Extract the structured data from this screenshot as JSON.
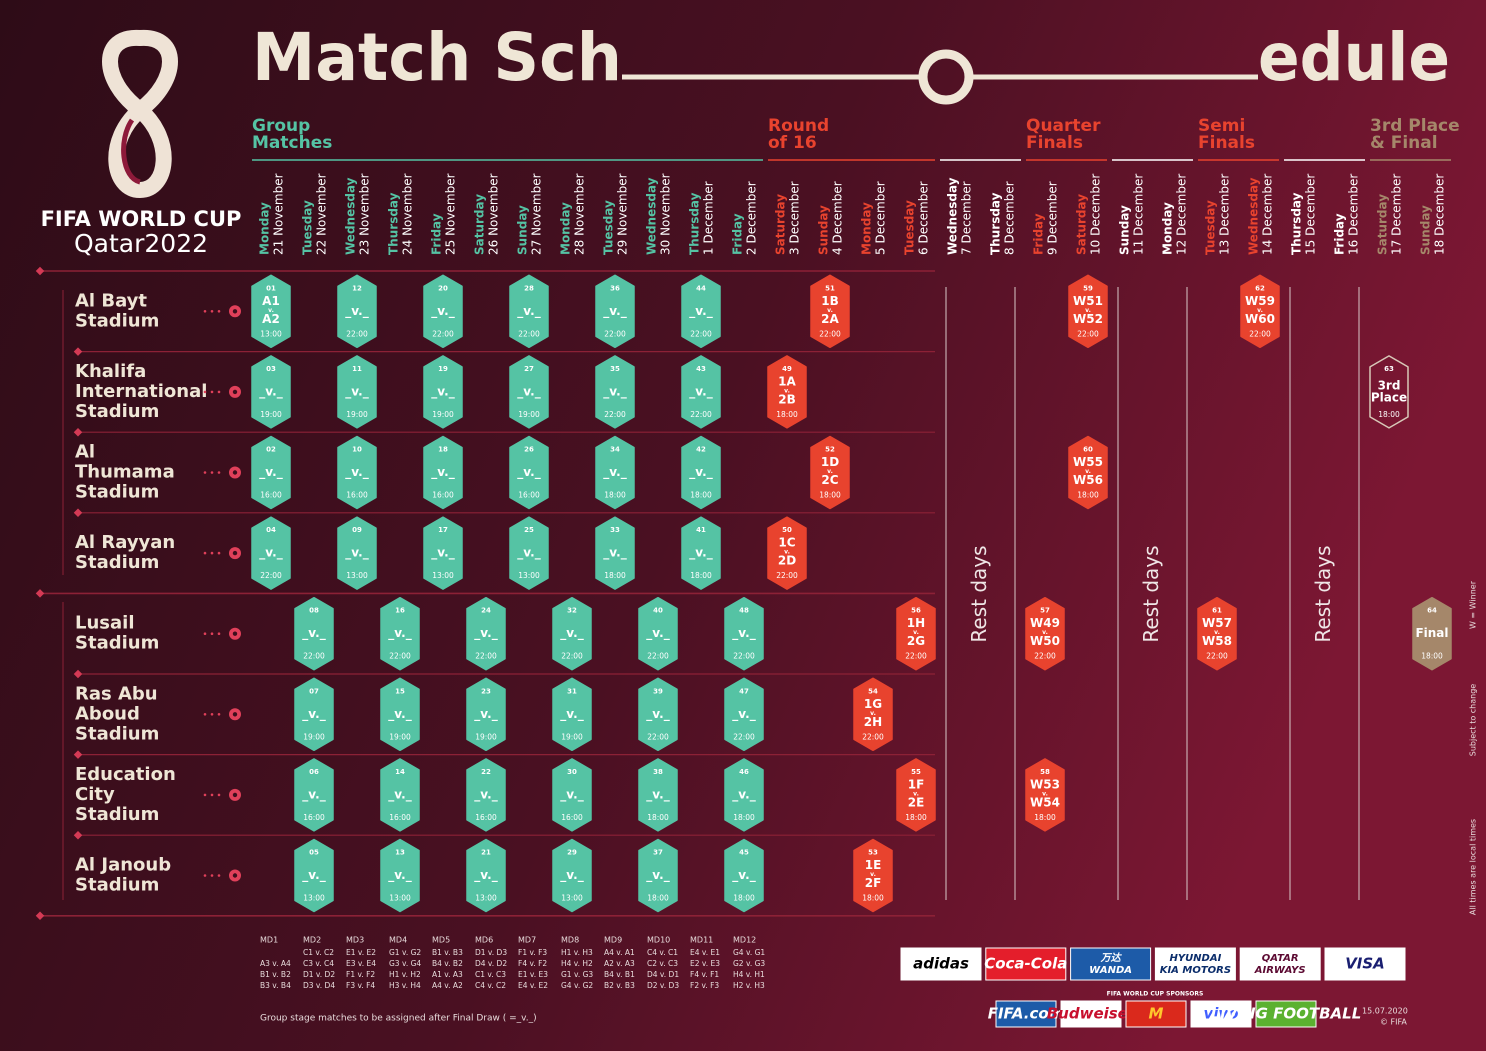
{
  "header": {
    "title_left": "Match Sch",
    "title_right": "edule",
    "logo_line1": "FIFA WORLD CUP",
    "logo_line2": "Qatar2022"
  },
  "columns": [
    {
      "label": [
        "Group",
        "Matches"
      ],
      "color": "#55c3a4",
      "days": [
        {
          "weekday": "Monday",
          "date": "21 November"
        },
        {
          "weekday": "Tuesday",
          "date": "22 November"
        },
        {
          "weekday": "Wednesday",
          "date": "23 November"
        },
        {
          "weekday": "Thursday",
          "date": "24 November"
        },
        {
          "weekday": "Friday",
          "date": "25 November"
        },
        {
          "weekday": "Saturday",
          "date": "26 November"
        },
        {
          "weekday": "Sunday",
          "date": "27 November"
        },
        {
          "weekday": "Monday",
          "date": "28 November"
        },
        {
          "weekday": "Tuesday",
          "date": "29 November"
        },
        {
          "weekday": "Wednesday",
          "date": "30 November"
        },
        {
          "weekday": "Thursday",
          "date": "1 December"
        },
        {
          "weekday": "Friday",
          "date": "2 December"
        }
      ]
    },
    {
      "label": [
        "Round",
        "of 16"
      ],
      "color": "#e8432e",
      "days": [
        {
          "weekday": "Saturday",
          "date": "3 December"
        },
        {
          "weekday": "Sunday",
          "date": "4 December"
        },
        {
          "weekday": "Monday",
          "date": "5 December"
        },
        {
          "weekday": "Tuesday",
          "date": "6 December"
        }
      ]
    },
    {
      "rest": "Rest days",
      "color": "#ffffff",
      "days": [
        {
          "weekday": "Wednesday",
          "date": "7 December"
        },
        {
          "weekday": "Thursday",
          "date": "8 December"
        }
      ]
    },
    {
      "label": [
        "Quarter",
        "Finals"
      ],
      "color": "#e8432e",
      "days": [
        {
          "weekday": "Friday",
          "date": "9 December"
        },
        {
          "weekday": "Saturday",
          "date": "10 December"
        }
      ]
    },
    {
      "rest": "Rest days",
      "color": "#ffffff",
      "days": [
        {
          "weekday": "Sunday",
          "date": "11 December"
        },
        {
          "weekday": "Monday",
          "date": "12 December"
        }
      ]
    },
    {
      "label": [
        "Semi",
        "Finals"
      ],
      "color": "#e8432e",
      "days": [
        {
          "weekday": "Tuesday",
          "date": "13 December"
        },
        {
          "weekday": "Wednesday",
          "date": "14 December"
        }
      ]
    },
    {
      "rest": "Rest days",
      "color": "#ffffff",
      "days": [
        {
          "weekday": "Thursday",
          "date": "15 December"
        },
        {
          "weekday": "Friday",
          "date": "16 December"
        }
      ]
    },
    {
      "label": [
        "3rd Place",
        "& Final"
      ],
      "color": "#a5876a",
      "days": [
        {
          "weekday": "Saturday",
          "date": "17 December"
        },
        {
          "weekday": "Sunday",
          "date": "18 December"
        }
      ]
    }
  ],
  "stadiums": [
    {
      "name": [
        "Al Bayt",
        "Stadium"
      ],
      "matches": [
        {
          "no": "01",
          "date": "21 November",
          "teams": [
            "A1",
            "v.",
            "A2"
          ],
          "time": "13:00"
        },
        {
          "no": "12",
          "date": "23 November",
          "teams": [
            "_v._"
          ],
          "time": "22:00"
        },
        {
          "no": "20",
          "date": "25 November",
          "teams": [
            "_v._"
          ],
          "time": "22:00"
        },
        {
          "no": "28",
          "date": "27 November",
          "teams": [
            "_v._"
          ],
          "time": "22:00"
        },
        {
          "no": "36",
          "date": "29 November",
          "teams": [
            "_v._"
          ],
          "time": "22:00"
        },
        {
          "no": "44",
          "date": "1 December",
          "teams": [
            "_v._"
          ],
          "time": "22:00"
        },
        {
          "no": "51",
          "date": "4 December",
          "teams": [
            "1B",
            "v.",
            "2A"
          ],
          "time": "22:00"
        },
        {
          "no": "59",
          "date": "10 December",
          "teams": [
            "W51",
            "v.",
            "W52"
          ],
          "time": "22:00"
        },
        {
          "no": "62",
          "date": "14 December",
          "teams": [
            "W59",
            "v.",
            "W60"
          ],
          "time": "22:00"
        }
      ]
    },
    {
      "name": [
        "Khalifa",
        "International",
        "Stadium"
      ],
      "matches": [
        {
          "no": "03",
          "date": "21 November",
          "teams": [
            "_v._"
          ],
          "time": "19:00"
        },
        {
          "no": "11",
          "date": "23 November",
          "teams": [
            "_v._"
          ],
          "time": "19:00"
        },
        {
          "no": "19",
          "date": "25 November",
          "teams": [
            "_v._"
          ],
          "time": "19:00"
        },
        {
          "no": "27",
          "date": "27 November",
          "teams": [
            "_v._"
          ],
          "time": "19:00"
        },
        {
          "no": "35",
          "date": "29 November",
          "teams": [
            "_v._"
          ],
          "time": "22:00"
        },
        {
          "no": "43",
          "date": "1 December",
          "teams": [
            "_v._"
          ],
          "time": "22:00"
        },
        {
          "no": "49",
          "date": "3 December",
          "teams": [
            "1A",
            "v.",
            "2B"
          ],
          "time": "18:00"
        },
        {
          "no": "63",
          "date": "17 December",
          "teams": [
            "3rd",
            "Place"
          ],
          "time": "18:00",
          "outline": true
        }
      ]
    },
    {
      "name": [
        "Al",
        "Thumama",
        "Stadium"
      ],
      "matches": [
        {
          "no": "02",
          "date": "21 November",
          "teams": [
            "_v._"
          ],
          "time": "16:00"
        },
        {
          "no": "10",
          "date": "23 November",
          "teams": [
            "_v._"
          ],
          "time": "16:00"
        },
        {
          "no": "18",
          "date": "25 November",
          "teams": [
            "_v._"
          ],
          "time": "16:00"
        },
        {
          "no": "26",
          "date": "27 November",
          "teams": [
            "_v._"
          ],
          "time": "16:00"
        },
        {
          "no": "34",
          "date": "29 November",
          "teams": [
            "_v._"
          ],
          "time": "18:00"
        },
        {
          "no": "42",
          "date": "1 December",
          "teams": [
            "_v._"
          ],
          "time": "18:00"
        },
        {
          "no": "52",
          "date": "4 December",
          "teams": [
            "1D",
            "v.",
            "2C"
          ],
          "time": "18:00"
        },
        {
          "no": "60",
          "date": "10 December",
          "teams": [
            "W55",
            "v.",
            "W56"
          ],
          "time": "18:00"
        }
      ]
    },
    {
      "name": [
        "Al Rayyan",
        "Stadium"
      ],
      "matches": [
        {
          "no": "04",
          "date": "21 November",
          "teams": [
            "_v._"
          ],
          "time": "22:00"
        },
        {
          "no": "09",
          "date": "23 November",
          "teams": [
            "_v._"
          ],
          "time": "13:00"
        },
        {
          "no": "17",
          "date": "25 November",
          "teams": [
            "_v._"
          ],
          "time": "13:00"
        },
        {
          "no": "25",
          "date": "27 November",
          "teams": [
            "_v._"
          ],
          "time": "13:00"
        },
        {
          "no": "33",
          "date": "29 November",
          "teams": [
            "_v._"
          ],
          "time": "18:00"
        },
        {
          "no": "41",
          "date": "1 December",
          "teams": [
            "_v._"
          ],
          "time": "18:00"
        },
        {
          "no": "50",
          "date": "3 December",
          "teams": [
            "1C",
            "v.",
            "2D"
          ],
          "time": "22:00"
        }
      ]
    },
    {
      "name": [
        "Lusail",
        "Stadium"
      ],
      "matches": [
        {
          "no": "08",
          "date": "22 November",
          "teams": [
            "_v._"
          ],
          "time": "22:00"
        },
        {
          "no": "16",
          "date": "24 November",
          "teams": [
            "_v._"
          ],
          "time": "22:00"
        },
        {
          "no": "24",
          "date": "26 November",
          "teams": [
            "_v._"
          ],
          "time": "22:00"
        },
        {
          "no": "32",
          "date": "28 November",
          "teams": [
            "_v._"
          ],
          "time": "22:00"
        },
        {
          "no": "40",
          "date": "30 November",
          "teams": [
            "_v._"
          ],
          "time": "22:00"
        },
        {
          "no": "48",
          "date": "2 December",
          "teams": [
            "_v._"
          ],
          "time": "22:00"
        },
        {
          "no": "56",
          "date": "6 December",
          "teams": [
            "1H",
            "v.",
            "2G"
          ],
          "time": "22:00"
        },
        {
          "no": "57",
          "date": "9 December",
          "teams": [
            "W49",
            "v.",
            "W50"
          ],
          "time": "22:00"
        },
        {
          "no": "61",
          "date": "13 December",
          "teams": [
            "W57",
            "v.",
            "W58"
          ],
          "time": "22:00"
        },
        {
          "no": "64",
          "date": "18 December",
          "teams": [
            "Final"
          ],
          "time": "18:00"
        }
      ]
    },
    {
      "name": [
        "Ras Abu",
        "Aboud",
        "Stadium"
      ],
      "matches": [
        {
          "no": "07",
          "date": "22 November",
          "teams": [
            "_v._"
          ],
          "time": "19:00"
        },
        {
          "no": "15",
          "date": "24 November",
          "teams": [
            "_v._"
          ],
          "time": "19:00"
        },
        {
          "no": "23",
          "date": "26 November",
          "teams": [
            "_v._"
          ],
          "time": "19:00"
        },
        {
          "no": "31",
          "date": "28 November",
          "teams": [
            "_v._"
          ],
          "time": "19:00"
        },
        {
          "no": "39",
          "date": "30 November",
          "teams": [
            "_v._"
          ],
          "time": "22:00"
        },
        {
          "no": "47",
          "date": "2 December",
          "teams": [
            "_v._"
          ],
          "time": "22:00"
        },
        {
          "no": "54",
          "date": "5 December",
          "teams": [
            "1G",
            "v.",
            "2H"
          ],
          "time": "22:00"
        }
      ]
    },
    {
      "name": [
        "Education",
        "City",
        "Stadium"
      ],
      "matches": [
        {
          "no": "06",
          "date": "22 November",
          "teams": [
            "_v._"
          ],
          "time": "16:00"
        },
        {
          "no": "14",
          "date": "24 November",
          "teams": [
            "_v._"
          ],
          "time": "16:00"
        },
        {
          "no": "22",
          "date": "26 November",
          "teams": [
            "_v._"
          ],
          "time": "16:00"
        },
        {
          "no": "30",
          "date": "28 November",
          "teams": [
            "_v._"
          ],
          "time": "16:00"
        },
        {
          "no": "38",
          "date": "30 November",
          "teams": [
            "_v._"
          ],
          "time": "18:00"
        },
        {
          "no": "46",
          "date": "2 December",
          "teams": [
            "_v._"
          ],
          "time": "18:00"
        },
        {
          "no": "55",
          "date": "6 December",
          "teams": [
            "1F",
            "v.",
            "2E"
          ],
          "time": "18:00"
        },
        {
          "no": "58",
          "date": "9 December",
          "teams": [
            "W53",
            "v.",
            "W54"
          ],
          "time": "18:00"
        }
      ]
    },
    {
      "name": [
        "Al Janoub",
        "Stadium"
      ],
      "matches": [
        {
          "no": "05",
          "date": "22 November",
          "teams": [
            "_v._"
          ],
          "time": "13:00"
        },
        {
          "no": "13",
          "date": "24 November",
          "teams": [
            "_v._"
          ],
          "time": "13:00"
        },
        {
          "no": "21",
          "date": "26 November",
          "teams": [
            "_v._"
          ],
          "time": "13:00"
        },
        {
          "no": "29",
          "date": "28 November",
          "teams": [
            "_v._"
          ],
          "time": "13:00"
        },
        {
          "no": "37",
          "date": "30 November",
          "teams": [
            "_v._"
          ],
          "time": "18:00"
        },
        {
          "no": "45",
          "date": "2 December",
          "teams": [
            "_v._"
          ],
          "time": "18:00"
        },
        {
          "no": "53",
          "date": "5 December",
          "teams": [
            "1E",
            "v.",
            "2F"
          ],
          "time": "18:00"
        }
      ]
    }
  ],
  "matchdays": [
    {
      "label": "MD1",
      "fixtures": [
        "A3 v. A4",
        "B1 v. B2",
        "B3 v. B4"
      ]
    },
    {
      "label": "MD2",
      "fixtures": [
        "C1 v. C2",
        "C3 v. C4",
        "D1 v. D2",
        "D3 v. D4"
      ]
    },
    {
      "label": "MD3",
      "fixtures": [
        "E1 v. E2",
        "E3 v. E4",
        "F1 v. F2",
        "F3 v. F4"
      ]
    },
    {
      "label": "MD4",
      "fixtures": [
        "G1 v. G2",
        "G3 v. G4",
        "H1 v. H2",
        "H3 v. H4"
      ]
    },
    {
      "label": "MD5",
      "fixtures": [
        "B1 v. B3",
        "B4 v. B2",
        "A1 v. A3",
        "A4 v. A2"
      ]
    },
    {
      "label": "MD6",
      "fixtures": [
        "D1 v. D3",
        "D4 v. D2",
        "C1 v. C3",
        "C4 v. C2"
      ]
    },
    {
      "label": "MD7",
      "fixtures": [
        "F1 v. F3",
        "F4 v. F2",
        "E1 v. E3",
        "E4 v. E2"
      ]
    },
    {
      "label": "MD8",
      "fixtures": [
        "H1 v. H3",
        "H4 v. H2",
        "G1 v. G3",
        "G4 v. G2"
      ]
    },
    {
      "label": "MD9",
      "fixtures": [
        "A4 v. A1",
        "A2 v. A3",
        "B4 v. B1",
        "B2 v. B3"
      ]
    },
    {
      "label": "MD10",
      "fixtures": [
        "C4 v. C1",
        "C2 v. C3",
        "D4 v. D1",
        "D2 v. D3"
      ]
    },
    {
      "label": "MD11",
      "fixtures": [
        "E4 v. E1",
        "E2 v. E3",
        "F4 v. F1",
        "F2 v. F3"
      ]
    },
    {
      "label": "MD12",
      "fixtures": [
        "G4 v. G1",
        "G2 v. G3",
        "H4 v. H1",
        "H2 v. H3"
      ]
    }
  ],
  "footer_note": "Group stage matches to be assigned after Final Draw ( =_v._)",
  "side_notes": [
    "W = Winner",
    "Subject to change",
    "All times are local times"
  ],
  "sponsors_title": "FIFA WORLD CUP SPONSORS",
  "partners": [
    {
      "lines": [
        "adidas"
      ],
      "bg": "#ffffff",
      "color": "#000000"
    },
    {
      "lines": [
        "Coca-Cola"
      ],
      "bg": "#e41e2b",
      "color": "#ffffff"
    },
    {
      "lines": [
        "万达",
        "WANDA"
      ],
      "bg": "#1d5ba8",
      "color": "#ffffff"
    },
    {
      "lines": [
        "HYUNDAI",
        "KIA MOTORS"
      ],
      "bg": "#ffffff",
      "color": "#0b2d6b"
    },
    {
      "lines": [
        "QATAR",
        "AIRWAYS"
      ],
      "bg": "#ffffff",
      "color": "#5c0a32"
    },
    {
      "lines": [
        "VISA"
      ],
      "bg": "#ffffff",
      "color": "#1a1f71"
    }
  ],
  "sponsors": [
    {
      "lines": [
        "FIFA.com"
      ],
      "bg": "#1d5ba8",
      "color": "#ffffff"
    },
    {
      "lines": [
        "Budweiser"
      ],
      "bg": "#ffffff",
      "color": "#c8102e"
    },
    {
      "lines": [
        "M"
      ],
      "bg": "#da291c",
      "color": "#ffc72c"
    },
    {
      "lines": [
        "vivo"
      ],
      "bg": "#ffffff",
      "color": "#415fff"
    },
    {
      "lines": [
        "LIVING FOOTBALL"
      ],
      "bg": "#5bb130",
      "color": "#ffffff"
    }
  ],
  "date": "15.07.2020",
  "copyright": "© FIFA"
}
